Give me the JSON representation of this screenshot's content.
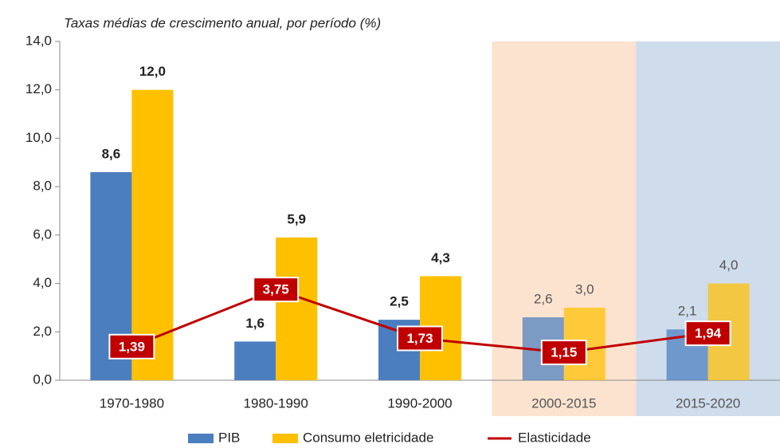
{
  "chart_data": {
    "type": "bar",
    "title": "Taxas médias de crescimento anual, por período (%)",
    "categories": [
      "1970-1980",
      "1980-1990",
      "1990-2000",
      "2000-2015",
      "2015-2020"
    ],
    "category_backgrounds": [
      null,
      null,
      null,
      "#fbe3d0",
      "#cfdcec"
    ],
    "series": [
      {
        "name": "PIB",
        "color": "#4a7ebf",
        "values": [
          8.6,
          1.6,
          2.5,
          2.6,
          2.1
        ],
        "value_labels": [
          "8,6",
          "1,6",
          "2,5",
          "2,6",
          "2,1"
        ]
      },
      {
        "name": "Consumo eletricidade",
        "color": "#ffc000",
        "values": [
          12.0,
          5.9,
          4.3,
          3.0,
          4.0
        ],
        "value_labels": [
          "12,0",
          "5,9",
          "4,3",
          "3,0",
          "4,0"
        ]
      },
      {
        "name": "Elasticidade",
        "color": "#c00000",
        "type": "line",
        "values": [
          1.39,
          3.75,
          1.73,
          1.15,
          1.94
        ],
        "value_labels": [
          "1,39",
          "3,75",
          "1,73",
          "1,15",
          "1,94"
        ]
      }
    ],
    "ylim": [
      0,
      14
    ],
    "yticks": [
      {
        "value": 0,
        "label": "0,0"
      },
      {
        "value": 2,
        "label": "2,0"
      },
      {
        "value": 4,
        "label": "4,0"
      },
      {
        "value": 6,
        "label": "6,0"
      },
      {
        "value": 8,
        "label": "8,0"
      },
      {
        "value": 10,
        "label": "10,0"
      },
      {
        "value": 12,
        "label": "12,0"
      },
      {
        "value": 14,
        "label": "14,0"
      }
    ],
    "grid": false,
    "legend": "bottom"
  }
}
